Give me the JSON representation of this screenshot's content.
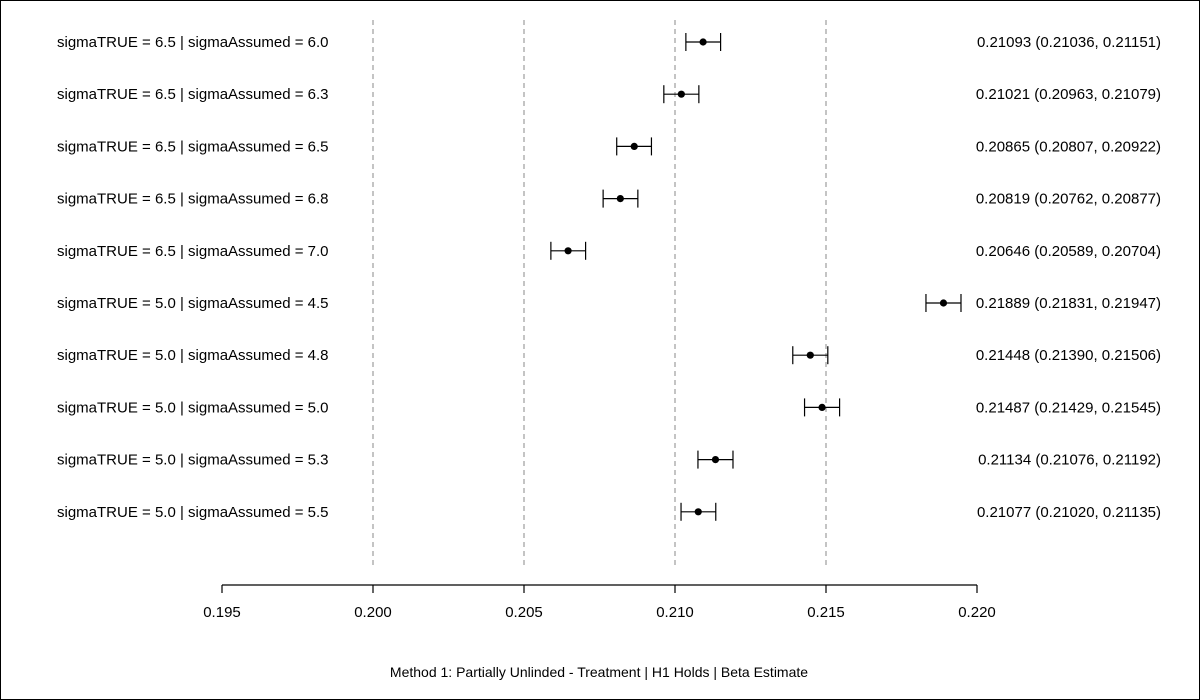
{
  "chart_data": {
    "type": "forest",
    "xlabel": "Method 1: Partially Unlinded - Treatment | H1 Holds | Beta Estimate",
    "xlim": [
      0.195,
      0.22
    ],
    "xticks": [
      "0.195",
      "0.200",
      "0.205",
      "0.210",
      "0.215",
      "0.220"
    ],
    "reference_lines": [
      0.2,
      0.205,
      0.21,
      0.215
    ],
    "rows": [
      {
        "label": "sigmaTRUE = 6.5 | sigmaAssumed = 6.0",
        "estimate": 0.21093,
        "lower": 0.21036,
        "upper": 0.21151,
        "text": "0.21093 (0.21036, 0.21151)"
      },
      {
        "label": "sigmaTRUE = 6.5 | sigmaAssumed = 6.3",
        "estimate": 0.21021,
        "lower": 0.20963,
        "upper": 0.21079,
        "text": "0.21021 (0.20963, 0.21079)"
      },
      {
        "label": "sigmaTRUE = 6.5 | sigmaAssumed = 6.5",
        "estimate": 0.20865,
        "lower": 0.20807,
        "upper": 0.20922,
        "text": "0.20865 (0.20807, 0.20922)"
      },
      {
        "label": "sigmaTRUE = 6.5 | sigmaAssumed = 6.8",
        "estimate": 0.20819,
        "lower": 0.20762,
        "upper": 0.20877,
        "text": "0.20819 (0.20762, 0.20877)"
      },
      {
        "label": "sigmaTRUE = 6.5 | sigmaAssumed = 7.0",
        "estimate": 0.20646,
        "lower": 0.20589,
        "upper": 0.20704,
        "text": "0.20646 (0.20589, 0.20704)"
      },
      {
        "label": "sigmaTRUE = 5.0 | sigmaAssumed = 4.5",
        "estimate": 0.21889,
        "lower": 0.21831,
        "upper": 0.21947,
        "text": "0.21889 (0.21831, 0.21947)"
      },
      {
        "label": "sigmaTRUE = 5.0 | sigmaAssumed = 4.8",
        "estimate": 0.21448,
        "lower": 0.2139,
        "upper": 0.21506,
        "text": "0.21448 (0.21390, 0.21506)"
      },
      {
        "label": "sigmaTRUE = 5.0 | sigmaAssumed = 5.0",
        "estimate": 0.21487,
        "lower": 0.21429,
        "upper": 0.21545,
        "text": "0.21487 (0.21429, 0.21545)"
      },
      {
        "label": "sigmaTRUE = 5.0 | sigmaAssumed = 5.3",
        "estimate": 0.21134,
        "lower": 0.21076,
        "upper": 0.21192,
        "text": "0.21134 (0.21076, 0.21192)"
      },
      {
        "label": "sigmaTRUE = 5.0 | sigmaAssumed = 5.5",
        "estimate": 0.21077,
        "lower": 0.2102,
        "upper": 0.21135,
        "text": "0.21077 (0.21020, 0.21135)"
      }
    ]
  }
}
